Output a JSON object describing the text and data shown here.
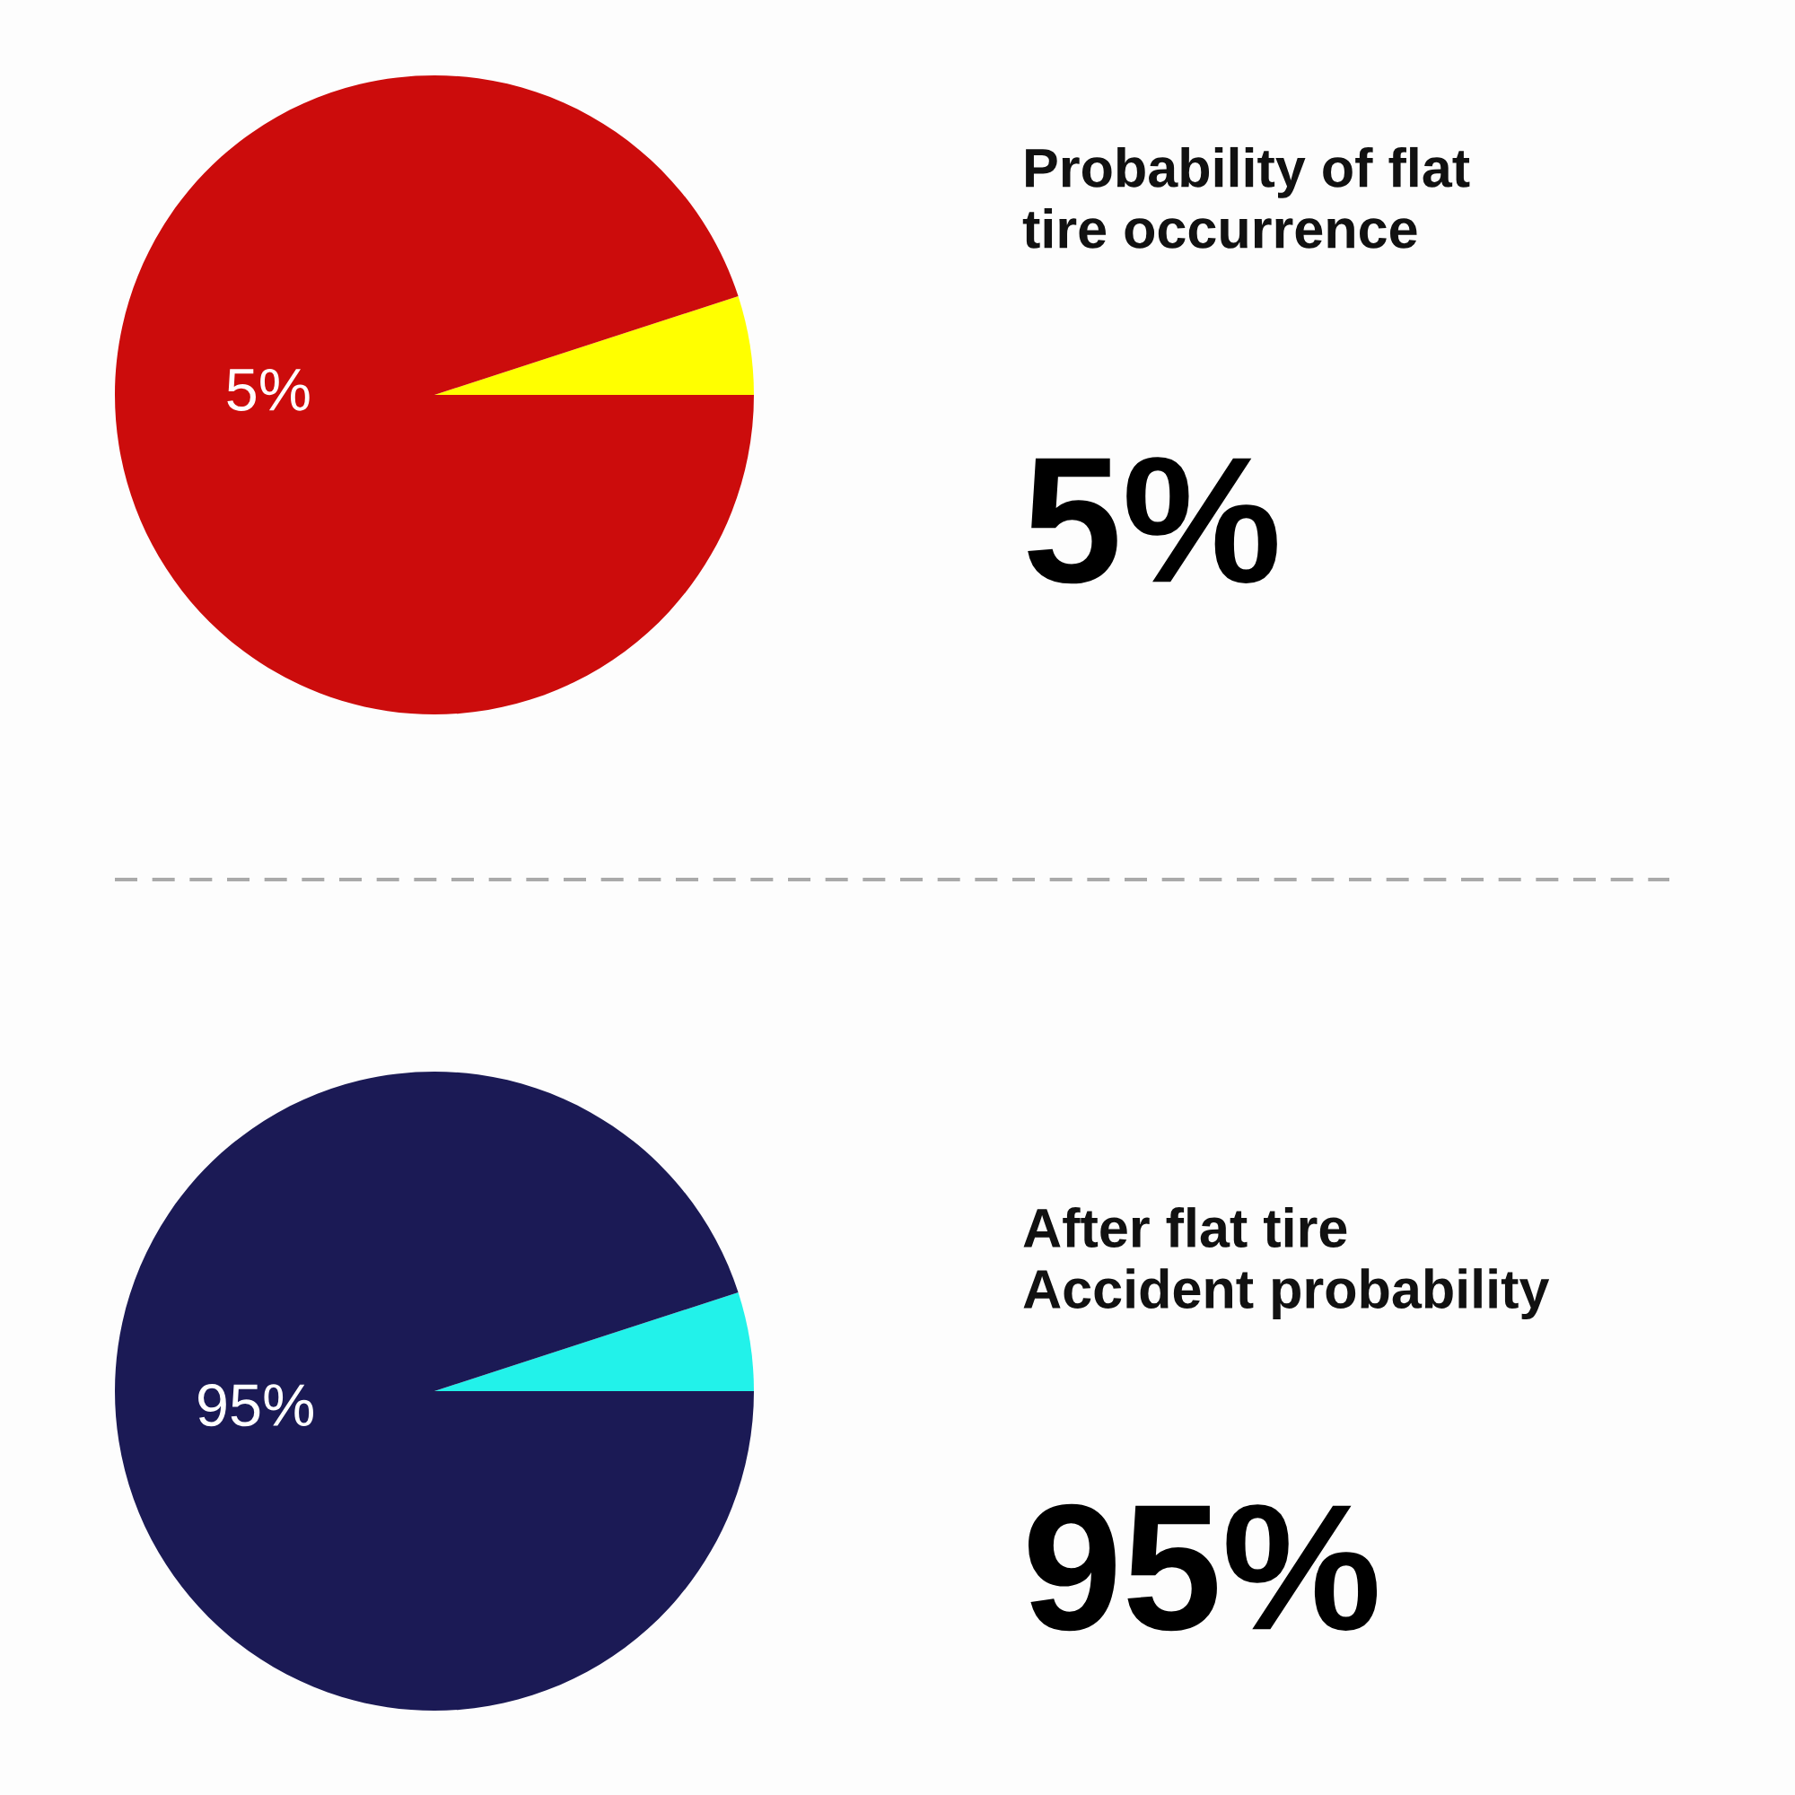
{
  "chart_data": [
    {
      "type": "pie",
      "title": "Probability of flat\ntire occurrence",
      "categories": [
        null,
        null
      ],
      "values": [
        5,
        95
      ],
      "colors": [
        "#ffff00",
        "#cc0c0c"
      ],
      "annotations": [
        "5%",
        "5%"
      ]
    },
    {
      "type": "pie",
      "title": "After flat tire\nAccident probability",
      "categories": [
        null,
        null
      ],
      "values": [
        5,
        95
      ],
      "colors": [
        "#22f2ea",
        "#1b1a55"
      ],
      "annotations": [
        "95%",
        "95%"
      ]
    }
  ]
}
